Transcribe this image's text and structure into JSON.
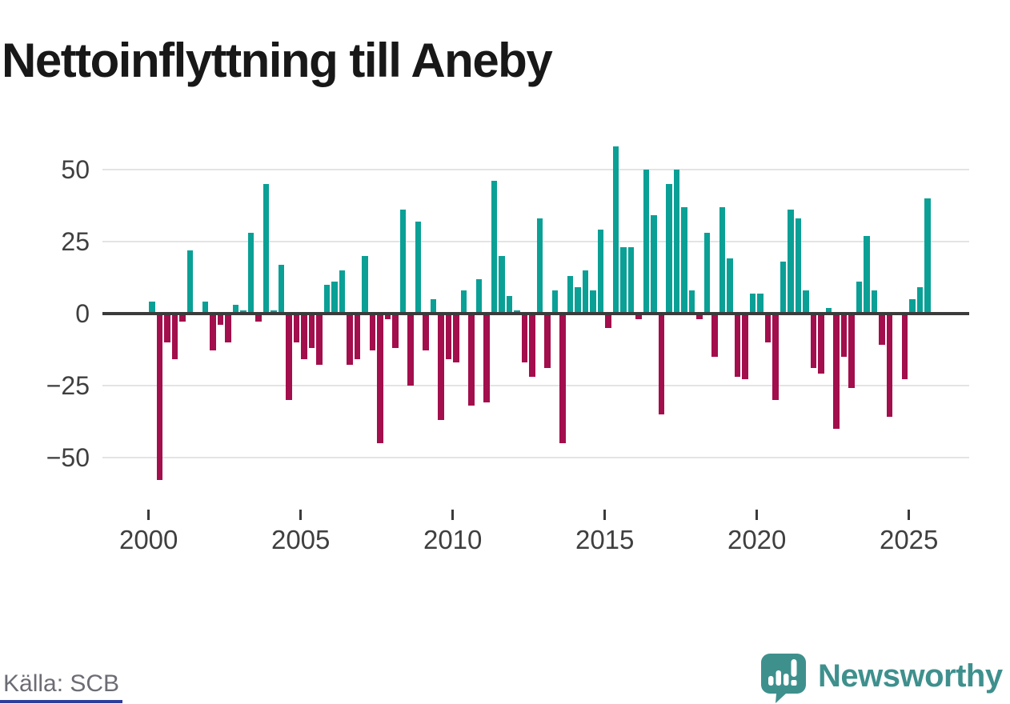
{
  "title": "Nettoinflyttning till Aneby",
  "source": "Källa: SCB",
  "brand": {
    "name": "Newsworthy",
    "icon": "speech-bubble-bar-chart-exclamation",
    "color": "#3e908d"
  },
  "colors": {
    "positive": "#0aa096",
    "negative": "#a30e4c",
    "axis": "#3b3b3b",
    "gridline": "#e4e4e4",
    "tick_label": "#3f3f3f",
    "source_text": "#6c6c75",
    "accent_bottom_bar": "#2d3e9b"
  },
  "y_axis": {
    "tick_labels": [
      "50",
      "25",
      "0",
      "−25",
      "−50"
    ],
    "tick_values": [
      50,
      25,
      0,
      -25,
      -50
    ]
  },
  "x_axis": {
    "tick_labels": [
      "2000",
      "2005",
      "2010",
      "2015",
      "2020",
      "2025"
    ],
    "tick_years": [
      2000,
      2005,
      2010,
      2015,
      2020,
      2025
    ]
  },
  "chart_data": {
    "type": "bar",
    "title": "Nettoinflyttning till Aneby",
    "x_unit": "quarter",
    "start": "2000 Q1",
    "end": "2025 Q3",
    "ylim": [
      -62,
      62
    ],
    "yticks": [
      50,
      25,
      0,
      -25,
      -50
    ],
    "grid": true,
    "legend": "none",
    "positive_color": "#0aa096",
    "negative_color": "#a30e4c",
    "series_by_year": {
      "2000": [
        4,
        -58,
        -10,
        -16
      ],
      "2001": [
        -3,
        22,
        0,
        4
      ],
      "2002": [
        -13,
        -4,
        -10,
        3
      ],
      "2003": [
        1,
        28,
        -3,
        45
      ],
      "2004": [
        1,
        17,
        -30,
        -10
      ],
      "2005": [
        -16,
        -12,
        -18,
        10
      ],
      "2006": [
        11,
        15,
        -18,
        -16
      ],
      "2007": [
        20,
        -13,
        -45,
        -2
      ],
      "2008": [
        -12,
        36,
        -25,
        32
      ],
      "2009": [
        -13,
        5,
        -37,
        -16
      ],
      "2010": [
        -17,
        8,
        -32,
        12
      ],
      "2011": [
        -31,
        46,
        20,
        6
      ],
      "2012": [
        1,
        -17,
        -22,
        33
      ],
      "2013": [
        -19,
        8,
        -45,
        13
      ],
      "2014": [
        9,
        15,
        8,
        29
      ],
      "2015": [
        -5,
        58,
        23,
        23
      ],
      "2016": [
        -2,
        50,
        34,
        -35
      ],
      "2017": [
        45,
        50,
        37,
        8
      ],
      "2018": [
        -2,
        28,
        -15,
        37
      ],
      "2019": [
        19,
        -22,
        -23,
        7
      ],
      "2020": [
        7,
        -10,
        -30,
        18
      ],
      "2021": [
        36,
        33,
        8,
        -19
      ],
      "2022": [
        -21,
        2,
        -40,
        -15
      ],
      "2023": [
        -26,
        11,
        27,
        8
      ],
      "2024": [
        -11,
        -36,
        0,
        -23
      ],
      "2025": [
        5,
        9,
        40
      ]
    }
  }
}
